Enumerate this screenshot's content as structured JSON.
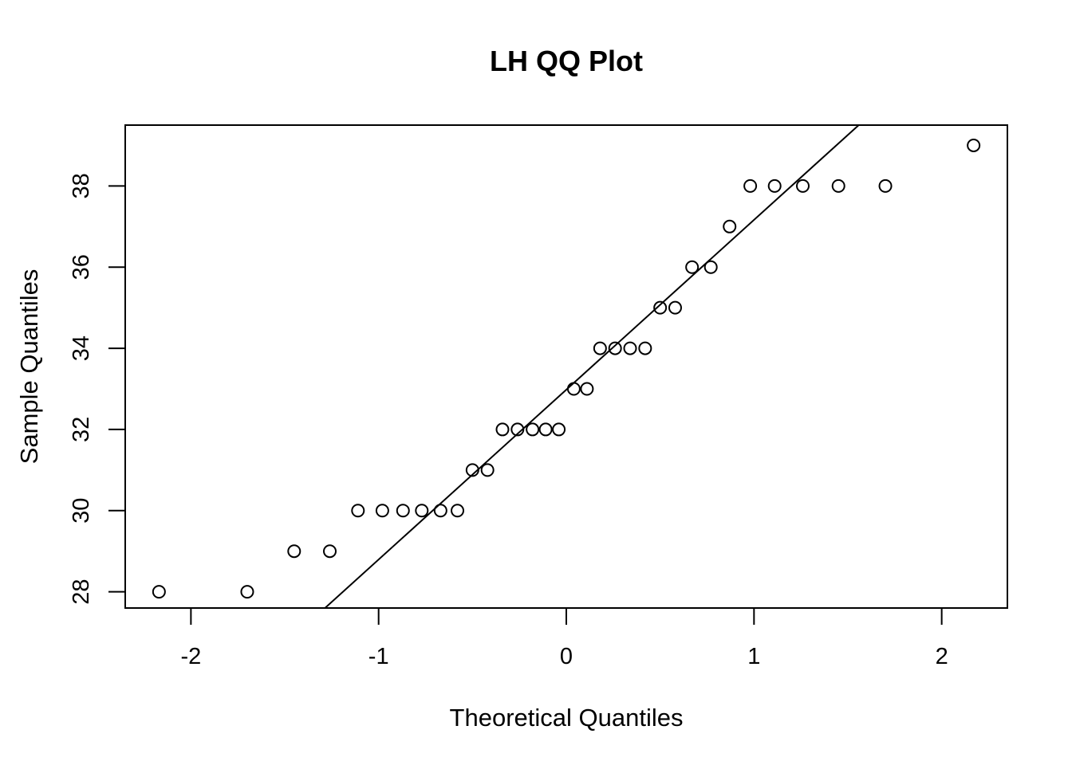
{
  "chart_data": {
    "type": "scatter",
    "title": "LH QQ Plot",
    "xlabel": "Theoretical Quantiles",
    "ylabel": "Sample Quantiles",
    "xlim": [
      -2.35,
      2.35
    ],
    "ylim": [
      27.6,
      39.5
    ],
    "xticks": [
      -2,
      -1,
      0,
      1,
      2
    ],
    "yticks": [
      28,
      30,
      32,
      34,
      36,
      38
    ],
    "grid": false,
    "legend": "none",
    "marker": "open-circle",
    "colors": {
      "points": "#000000",
      "line": "#000000",
      "frame": "#000000"
    },
    "points": [
      {
        "x": -2.17,
        "y": 28
      },
      {
        "x": -1.7,
        "y": 28
      },
      {
        "x": -1.45,
        "y": 29
      },
      {
        "x": -1.26,
        "y": 29
      },
      {
        "x": -1.11,
        "y": 30
      },
      {
        "x": -0.98,
        "y": 30
      },
      {
        "x": -0.87,
        "y": 30
      },
      {
        "x": -0.77,
        "y": 30
      },
      {
        "x": -0.67,
        "y": 30
      },
      {
        "x": -0.58,
        "y": 30
      },
      {
        "x": -0.5,
        "y": 31
      },
      {
        "x": -0.42,
        "y": 31
      },
      {
        "x": -0.34,
        "y": 32
      },
      {
        "x": -0.26,
        "y": 32
      },
      {
        "x": -0.18,
        "y": 32
      },
      {
        "x": -0.11,
        "y": 32
      },
      {
        "x": -0.04,
        "y": 32
      },
      {
        "x": 0.04,
        "y": 33
      },
      {
        "x": 0.11,
        "y": 33
      },
      {
        "x": 0.18,
        "y": 34
      },
      {
        "x": 0.26,
        "y": 34
      },
      {
        "x": 0.34,
        "y": 34
      },
      {
        "x": 0.42,
        "y": 34
      },
      {
        "x": 0.5,
        "y": 35
      },
      {
        "x": 0.58,
        "y": 35
      },
      {
        "x": 0.67,
        "y": 36
      },
      {
        "x": 0.77,
        "y": 36
      },
      {
        "x": 0.87,
        "y": 37
      },
      {
        "x": 0.98,
        "y": 38
      },
      {
        "x": 1.11,
        "y": 38
      },
      {
        "x": 1.26,
        "y": 38
      },
      {
        "x": 1.45,
        "y": 38
      },
      {
        "x": 1.7,
        "y": 38
      },
      {
        "x": 2.17,
        "y": 39
      }
    ],
    "reference_line": {
      "intercept": 32.98,
      "slope": 4.185
    }
  }
}
